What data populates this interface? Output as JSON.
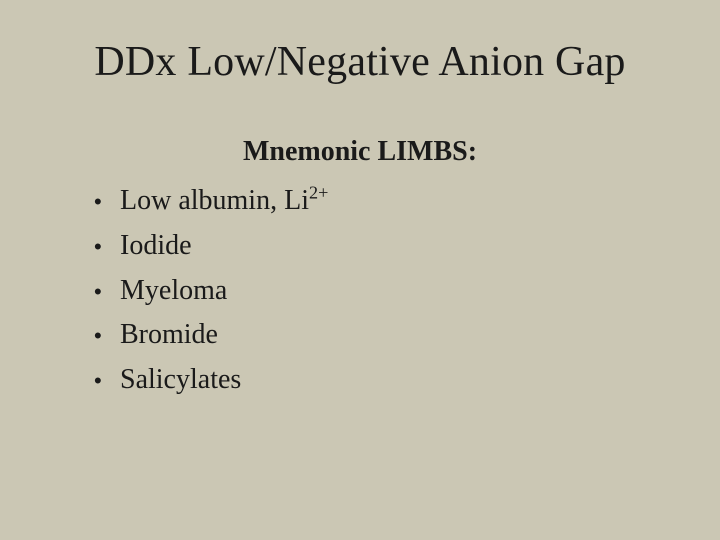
{
  "slide": {
    "background_color": "#cbc7b4",
    "text_color": "#1a1a1a",
    "font_family": "Times New Roman",
    "title": "DDx Low/Negative Anion Gap",
    "title_fontsize": 42,
    "subtitle": "Mnemonic LIMBS:",
    "subtitle_fontsize": 28,
    "subtitle_fontweight": "bold",
    "bullet_fontsize": 28,
    "bullets": [
      {
        "text_pre": "Low albumin, Li",
        "sup": "2+",
        "text_post": ""
      },
      {
        "text_pre": "Iodide",
        "sup": "",
        "text_post": ""
      },
      {
        "text_pre": "Myeloma",
        "sup": "",
        "text_post": ""
      },
      {
        "text_pre": "Bromide",
        "sup": "",
        "text_post": ""
      },
      {
        "text_pre": "Salicylates",
        "sup": "",
        "text_post": ""
      }
    ]
  }
}
